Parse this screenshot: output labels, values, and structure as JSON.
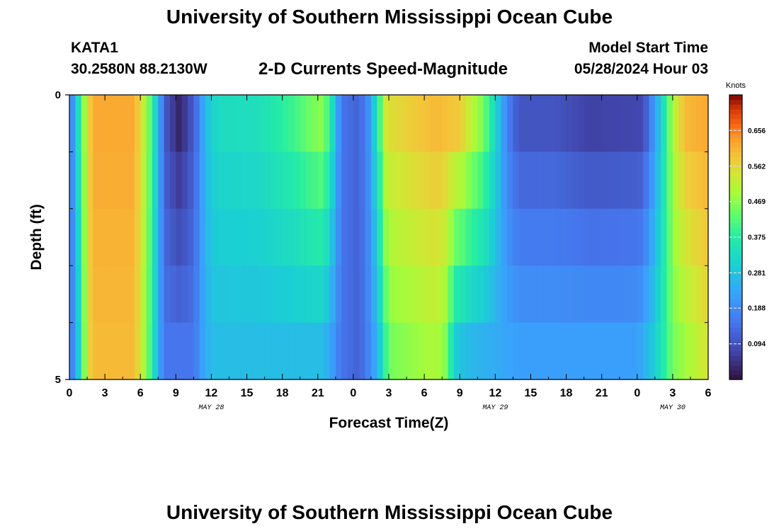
{
  "page": {
    "title": "University of Southern Mississippi Ocean Cube",
    "bottom_title": "University of Southern Mississippi Ocean Cube",
    "station": "KATA1",
    "coords": "30.2580N  88.2130W",
    "subtitle": "2-D Currents Speed-Magnitude",
    "model_label": "Model Start Time",
    "model_time": "05/28/2024 Hour 03"
  },
  "chart_data": {
    "type": "heatmap",
    "title": "2-D Currents Speed-Magnitude",
    "xlabel": "Forecast Time(Z)",
    "ylabel": "Depth (ft)",
    "x_ticks": [
      "0",
      "3",
      "6",
      "9",
      "12",
      "15",
      "18",
      "21",
      "0",
      "3",
      "6",
      "9",
      "12",
      "15",
      "18",
      "21",
      "0",
      "3",
      "6"
    ],
    "date_labels": [
      {
        "text": "MAY 28",
        "hour": 12
      },
      {
        "text": "MAY 29",
        "hour": 36
      },
      {
        "text": "MAY 30",
        "hour": 51
      }
    ],
    "x_range_hours": [
      0,
      54
    ],
    "y_ticks": [
      "0",
      "5"
    ],
    "y_range_ft": [
      0,
      5
    ],
    "colorbar": {
      "label": "Knots",
      "ticks": [
        "0.656",
        "0.562",
        "0.469",
        "0.375",
        "0.281",
        "0.188",
        "0.094"
      ],
      "tick_values": [
        0.656,
        0.562,
        0.469,
        0.375,
        0.281,
        0.188,
        0.094
      ],
      "range": [
        0,
        0.75
      ]
    },
    "time_step_hours": 0.5,
    "rows": 5,
    "speed_profile": [
      [
        0,
        0.1
      ],
      [
        0.3,
        0.22
      ],
      [
        0.8,
        0.35
      ],
      [
        1.5,
        0.55
      ],
      [
        2,
        0.62
      ],
      [
        5.5,
        0.62
      ],
      [
        6.3,
        0.52
      ],
      [
        7,
        0.4
      ],
      [
        7.6,
        0.22
      ],
      [
        8.2,
        0.1
      ],
      [
        9.2,
        0.03
      ],
      [
        10,
        0.07
      ],
      [
        10.8,
        0.15
      ],
      [
        11.5,
        0.27
      ],
      [
        12.5,
        0.33
      ],
      [
        16,
        0.34
      ],
      [
        19,
        0.4
      ],
      [
        20.5,
        0.45
      ],
      [
        21.5,
        0.47
      ],
      [
        22.2,
        0.34
      ],
      [
        23,
        0.15
      ],
      [
        24.5,
        0.12
      ],
      [
        25.3,
        0.2
      ],
      [
        26,
        0.35
      ],
      [
        26.8,
        0.55
      ],
      [
        31,
        0.6
      ],
      [
        33,
        0.58
      ],
      [
        35,
        0.45
      ],
      [
        36,
        0.32
      ],
      [
        37,
        0.17
      ],
      [
        38,
        0.1
      ],
      [
        41,
        0.1
      ],
      [
        44,
        0.07
      ],
      [
        48.5,
        0.08
      ],
      [
        49.2,
        0.18
      ],
      [
        50,
        0.3
      ],
      [
        51,
        0.5
      ],
      [
        52,
        0.6
      ],
      [
        54,
        0.62
      ]
    ],
    "depth_profile": [
      [
        0,
        0.1
      ],
      [
        0.3,
        0.2
      ],
      [
        0.8,
        0.3
      ],
      [
        1.5,
        0.55
      ],
      [
        2,
        0.6
      ],
      [
        5.5,
        0.6
      ],
      [
        6.3,
        0.5
      ],
      [
        7,
        0.38
      ],
      [
        7.6,
        0.22
      ],
      [
        8.2,
        0.15
      ],
      [
        10.5,
        0.15
      ],
      [
        11.2,
        0.22
      ],
      [
        12,
        0.27
      ],
      [
        21.5,
        0.27
      ],
      [
        22.2,
        0.22
      ],
      [
        23,
        0.15
      ],
      [
        24.5,
        0.12
      ],
      [
        25.3,
        0.18
      ],
      [
        26,
        0.25
      ],
      [
        27,
        0.45
      ],
      [
        31,
        0.5
      ],
      [
        32,
        0.45
      ],
      [
        32.5,
        0.3
      ],
      [
        34,
        0.26
      ],
      [
        38,
        0.22
      ],
      [
        48,
        0.22
      ],
      [
        49.5,
        0.3
      ],
      [
        51,
        0.45
      ],
      [
        54,
        0.55
      ]
    ]
  }
}
